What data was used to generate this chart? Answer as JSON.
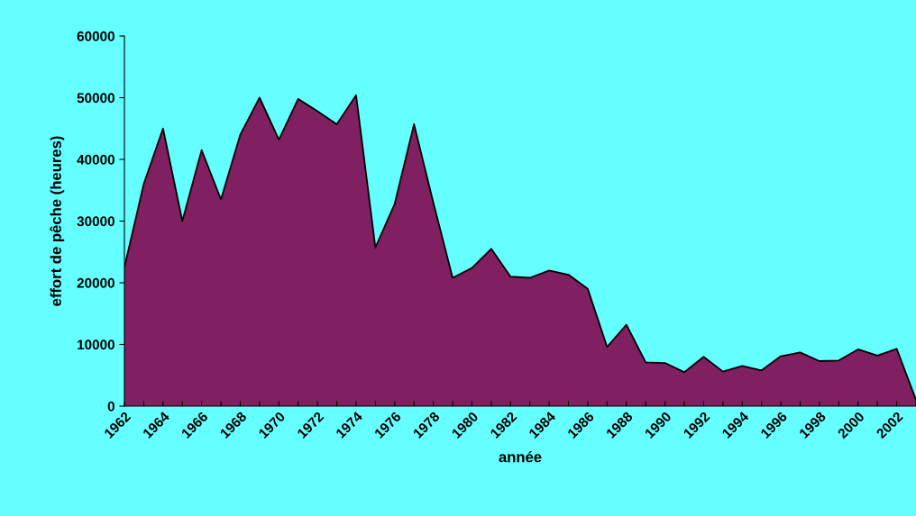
{
  "chart_data": {
    "type": "area",
    "xlabel": "année",
    "ylabel": "effort de pêche (heures)",
    "categories": [
      "1962",
      null,
      "1964",
      null,
      "1966",
      null,
      "1968",
      null,
      "1970",
      null,
      "1972",
      null,
      "1974",
      null,
      "1976",
      null,
      "1978",
      null,
      "1980",
      null,
      "1982",
      null,
      "1984",
      null,
      "1986",
      null,
      "1988",
      null,
      "1990",
      null,
      "1992",
      null,
      "1994",
      null,
      "1996",
      null,
      "1998",
      null,
      "2000",
      null,
      "2002",
      null
    ],
    "series": [
      {
        "color": "#802060",
        "values": [
          22500,
          36000,
          45000,
          30000,
          41500,
          33500,
          44000,
          50000,
          43200,
          49800,
          47800,
          45700,
          50400,
          25700,
          32800,
          45700,
          33000,
          20800,
          22400,
          25500,
          21000,
          20800,
          22000,
          21300,
          19000,
          9600,
          13200,
          7100,
          7000,
          5500,
          8000,
          5600,
          6500,
          5800,
          8100,
          8700,
          7300,
          7400,
          9200,
          8200,
          9300,
          1000
        ]
      }
    ],
    "ylim": [
      0,
      60000
    ],
    "yticks": [
      0,
      10000,
      20000,
      30000,
      40000,
      50000,
      60000
    ],
    "grid": false,
    "legend": false
  }
}
